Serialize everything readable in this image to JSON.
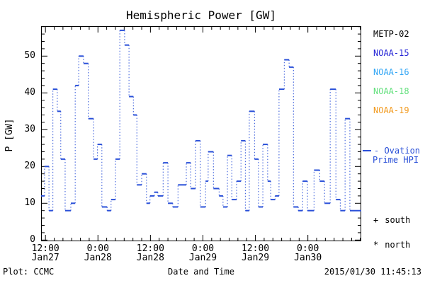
{
  "title": "Hemispheric Power [GW]",
  "axes": {
    "ylabel": "P [GW]",
    "xlabel": "Date and Time",
    "y_ticks": [
      0,
      10,
      20,
      30,
      40,
      50
    ],
    "y_minor_step": 2,
    "ylim": [
      0,
      58.5
    ],
    "x_major_ticks": [
      {
        "hour": 12,
        "time": "12:00",
        "date": "Jan27"
      },
      {
        "hour": 24,
        "time": "0:00",
        "date": "Jan28"
      },
      {
        "hour": 36,
        "time": "12:00",
        "date": "Jan28"
      },
      {
        "hour": 48,
        "time": "0:00",
        "date": "Jan29"
      },
      {
        "hour": 60,
        "time": "12:00",
        "date": "Jan29"
      },
      {
        "hour": 72,
        "time": "0:00",
        "date": "Jan30"
      }
    ],
    "x_minor_step_hours": 2,
    "xlim_hours": [
      11.0,
      84.2
    ]
  },
  "chart_data": {
    "type": "line",
    "subtype": "stair-steps with solid level dashes and dotted risers",
    "title": "Hemispheric Power [GW]",
    "xlabel": "Date and Time",
    "ylabel": "P [GW]",
    "series_name": "Ovation Prime HPI",
    "line_color": "#2a50d8",
    "x_unit": "hours since 2015-01-27 00:00 UT",
    "y_unit": "GW",
    "steps": [
      [
        11.0,
        12
      ],
      [
        11.8,
        20
      ],
      [
        12.8,
        8
      ],
      [
        13.7,
        41
      ],
      [
        14.7,
        35
      ],
      [
        15.5,
        22
      ],
      [
        16.5,
        8
      ],
      [
        17.8,
        10
      ],
      [
        18.8,
        42
      ],
      [
        19.6,
        50
      ],
      [
        20.7,
        48
      ],
      [
        21.8,
        33
      ],
      [
        23.0,
        22
      ],
      [
        23.9,
        26
      ],
      [
        24.9,
        9
      ],
      [
        26.1,
        8
      ],
      [
        27.0,
        11
      ],
      [
        28.0,
        22
      ],
      [
        29.0,
        57
      ],
      [
        30.1,
        53
      ],
      [
        31.1,
        39
      ],
      [
        32.1,
        34
      ],
      [
        32.9,
        15
      ],
      [
        34.0,
        18
      ],
      [
        35.1,
        10
      ],
      [
        35.9,
        12
      ],
      [
        36.9,
        13
      ],
      [
        37.7,
        12
      ],
      [
        38.9,
        21
      ],
      [
        40.0,
        10
      ],
      [
        41.1,
        9
      ],
      [
        42.3,
        15
      ],
      [
        44.2,
        21
      ],
      [
        45.2,
        14
      ],
      [
        46.3,
        27
      ],
      [
        47.4,
        9
      ],
      [
        48.6,
        16
      ],
      [
        49.2,
        24
      ],
      [
        50.4,
        14
      ],
      [
        51.7,
        12
      ],
      [
        52.6,
        9
      ],
      [
        53.6,
        23
      ],
      [
        54.6,
        11
      ],
      [
        55.7,
        16
      ],
      [
        56.7,
        27
      ],
      [
        57.7,
        8
      ],
      [
        58.6,
        35
      ],
      [
        59.8,
        22
      ],
      [
        60.7,
        9
      ],
      [
        61.7,
        26
      ],
      [
        62.8,
        16
      ],
      [
        63.5,
        11
      ],
      [
        64.5,
        12
      ],
      [
        65.4,
        41
      ],
      [
        66.6,
        49
      ],
      [
        67.7,
        47
      ],
      [
        68.7,
        9
      ],
      [
        69.8,
        8
      ],
      [
        70.8,
        16
      ],
      [
        71.9,
        8
      ],
      [
        73.4,
        19
      ],
      [
        74.7,
        16
      ],
      [
        75.8,
        10
      ],
      [
        77.1,
        41
      ],
      [
        78.4,
        11
      ],
      [
        79.4,
        8
      ],
      [
        80.5,
        33
      ],
      [
        81.6,
        8
      ]
    ],
    "t_end": 84.2
  },
  "legend": {
    "satellites": [
      {
        "label": "METP-02",
        "color": "#000000"
      },
      {
        "label": "NOAA-15",
        "color": "#2323d6"
      },
      {
        "label": "NOAA-16",
        "color": "#31a5f5"
      },
      {
        "label": "NOAA-18",
        "color": "#63e07d"
      },
      {
        "label": "NOAA-19",
        "color": "#f29a1e"
      }
    ],
    "series": {
      "line1": "- Ovation",
      "line2": "Prime HPI",
      "color": "#2a50d8"
    },
    "markers": [
      {
        "symbol": "+",
        "label": "south"
      },
      {
        "symbol": "*",
        "label": "north"
      }
    ]
  },
  "footer": {
    "left": "Plot: CCMC",
    "center": "Date and Time",
    "right": "2015/01/30 11:45:13"
  }
}
